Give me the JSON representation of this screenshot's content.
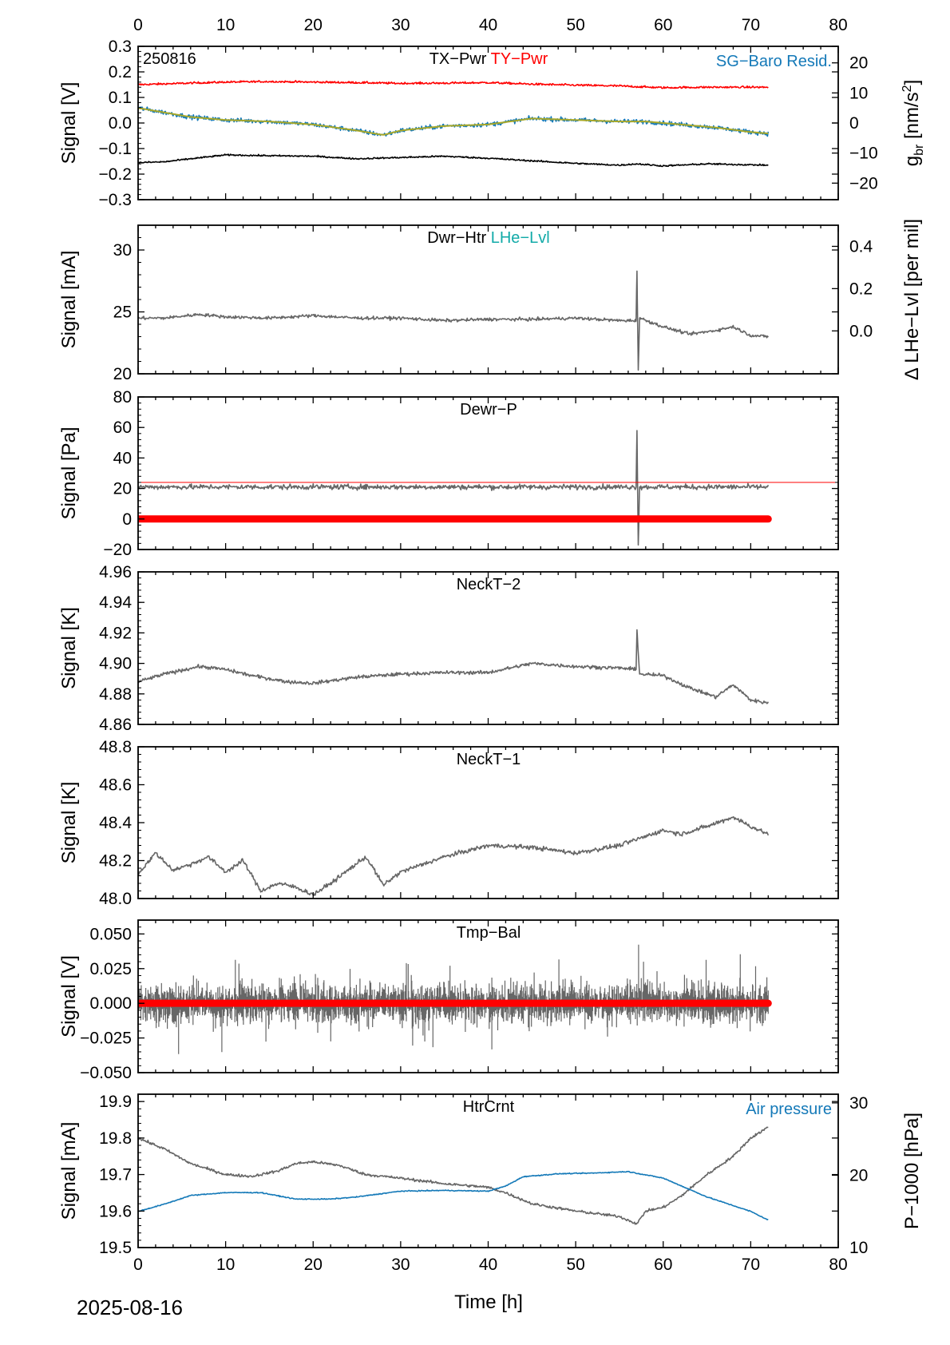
{
  "figure": {
    "date_label": "2025-08-16",
    "x_axis_title": "Time [h]",
    "colors": {
      "black": "#000000",
      "red": "#ff0000",
      "blue": "#1479b8",
      "teal": "#12aaa8",
      "gray": "#666666",
      "olive": "#a8a828"
    }
  },
  "chart_data": [
    {
      "id": "tx-ty-pwr",
      "type": "line",
      "corner_label": "250816",
      "labels": [
        {
          "text": "TX−Pwr",
          "color": "#000000"
        },
        {
          "text": "TY−Pwr",
          "color": "#ff0000"
        }
      ],
      "right_label": {
        "text": "SG−Baro Resid.",
        "color": "#1479b8"
      },
      "xlim": [
        0,
        80
      ],
      "xticks": [
        "0",
        "10",
        "20",
        "30",
        "40",
        "50",
        "60",
        "70",
        "80"
      ],
      "ylabel": "Signal [V]",
      "ylim": [
        -0.3,
        0.3
      ],
      "yticks": [
        "0.3",
        "0.2",
        "0.1",
        "0.0",
        "−0.1",
        "−0.2",
        "−0.3"
      ],
      "y2label": "g_br [nm/s²]",
      "y2_parts": [
        "g",
        "br",
        " [nm/s",
        "2",
        "]"
      ],
      "y2lim": [
        -25.5,
        25.5
      ],
      "y2ticks": [
        "20",
        "10",
        "0",
        "−10",
        "−20"
      ],
      "series": [
        {
          "name": "TY−Pwr",
          "color": "#ff0000",
          "axis": "left",
          "style": "line",
          "noise": 0.004,
          "x": [
            0,
            5,
            10,
            15,
            20,
            25,
            30,
            35,
            40,
            45,
            50,
            55,
            57,
            60,
            65,
            72
          ],
          "y": [
            0.15,
            0.155,
            0.16,
            0.162,
            0.16,
            0.158,
            0.155,
            0.156,
            0.158,
            0.152,
            0.148,
            0.145,
            0.142,
            0.138,
            0.14,
            0.14
          ]
        },
        {
          "name": "SG−Baro Resid.",
          "color": "#1479b8",
          "axis": "right",
          "style": "line",
          "noise": 0.7,
          "x": [
            0,
            3,
            6,
            10,
            15,
            20,
            25,
            28,
            30,
            35,
            40,
            45,
            50,
            55,
            58,
            62,
            66,
            70,
            72
          ],
          "y": [
            5,
            3.5,
            2,
            1,
            0.5,
            -0.5,
            -2.5,
            -4,
            -2.5,
            -1,
            -0.5,
            1.5,
            1,
            0.5,
            0.5,
            -0.5,
            -1.5,
            -3,
            -3.5
          ]
        },
        {
          "name": "TX−Pwr",
          "color": "#000000",
          "axis": "left",
          "style": "line",
          "noise": 0.003,
          "x": [
            0,
            3,
            6,
            10,
            15,
            20,
            25,
            30,
            35,
            40,
            45,
            50,
            55,
            57,
            60,
            65,
            72
          ],
          "y": [
            -0.155,
            -0.152,
            -0.14,
            -0.125,
            -0.128,
            -0.13,
            -0.14,
            -0.135,
            -0.13,
            -0.138,
            -0.148,
            -0.158,
            -0.165,
            -0.16,
            -0.168,
            -0.16,
            -0.165
          ]
        }
      ]
    },
    {
      "id": "dwr-htr",
      "type": "line",
      "labels": [
        {
          "text": "Dwr−Htr",
          "color": "#000000"
        },
        {
          "text": "LHe−Lvl",
          "color": "#12aaa8"
        }
      ],
      "xlim": [
        0,
        80
      ],
      "ylabel": "Signal [mA]",
      "ylim": [
        20,
        32
      ],
      "yticks": [
        "30",
        "25",
        "20"
      ],
      "y2label": "Δ LHe−Lvl [per mil]",
      "y2lim": [
        -0.203,
        0.5
      ],
      "y2ticks": [
        "0.4",
        "0.2",
        "0.0"
      ],
      "series": [
        {
          "name": "Dwr−Htr",
          "color": "#666666",
          "axis": "left",
          "style": "line",
          "noise": 0.12,
          "x": [
            0,
            3,
            7,
            10,
            15,
            20,
            25,
            30,
            35,
            40,
            45,
            50,
            55,
            56.9,
            57,
            57.15,
            57.3,
            60,
            63,
            66,
            68,
            70,
            72
          ],
          "y": [
            24.5,
            24.5,
            24.8,
            24.6,
            24.5,
            24.7,
            24.5,
            24.5,
            24.3,
            24.4,
            24.4,
            24.5,
            24.3,
            24.3,
            28.3,
            20.3,
            24.5,
            23.8,
            23.2,
            23.5,
            23.8,
            23.1,
            23
          ]
        }
      ]
    },
    {
      "id": "dewr-p",
      "type": "line",
      "labels": [
        {
          "text": "Dewr−P",
          "color": "#000000"
        }
      ],
      "xlim": [
        0,
        80
      ],
      "ylabel": "Signal [Pa]",
      "ylim": [
        -20,
        80
      ],
      "yticks": [
        "80",
        "60",
        "40",
        "20",
        "0",
        "−20"
      ],
      "series": [
        {
          "name": "",
          "color": "#666666",
          "axis": "left",
          "style": "line",
          "noise": 1.6,
          "x": [
            0,
            10,
            20,
            30,
            40,
            50,
            56.9,
            57,
            57.15,
            57.3,
            60,
            72
          ],
          "y": [
            21,
            21,
            21,
            21,
            21,
            21,
            21,
            58,
            -17,
            21,
            21,
            21
          ]
        },
        {
          "name": "",
          "color": "#ff0000",
          "axis": "left",
          "style": "thinline",
          "noise": 0,
          "x": [
            0,
            80
          ],
          "y": [
            24,
            24
          ]
        },
        {
          "name": "",
          "color": "#ff0000",
          "axis": "left",
          "style": "thick",
          "noise": 0,
          "x": [
            0,
            72
          ],
          "y": [
            0,
            0
          ]
        }
      ]
    },
    {
      "id": "neckt-2",
      "type": "line",
      "labels": [
        {
          "text": "NeckT−2",
          "color": "#000000"
        }
      ],
      "xlim": [
        0,
        80
      ],
      "ylabel": "Signal [K]",
      "ylim": [
        4.86,
        4.96
      ],
      "yticks": [
        "4.96",
        "4.94",
        "4.92",
        "4.90",
        "4.88",
        "4.86"
      ],
      "series": [
        {
          "name": "NeckT−2",
          "color": "#666666",
          "axis": "left",
          "style": "line",
          "noise": 0.0011,
          "x": [
            0,
            3,
            7,
            10,
            13,
            17,
            20,
            25,
            30,
            35,
            40,
            45,
            50,
            55,
            56.9,
            57,
            57.3,
            60,
            63,
            66,
            68,
            70,
            72
          ],
          "y": [
            4.888,
            4.893,
            4.898,
            4.896,
            4.892,
            4.888,
            4.887,
            4.891,
            4.893,
            4.894,
            4.894,
            4.9,
            4.898,
            4.897,
            4.896,
            4.922,
            4.893,
            4.892,
            4.884,
            4.878,
            4.886,
            4.876,
            4.874
          ]
        }
      ]
    },
    {
      "id": "neckt-1",
      "type": "line",
      "labels": [
        {
          "text": "NeckT−1",
          "color": "#000000"
        }
      ],
      "xlim": [
        0,
        80
      ],
      "ylabel": "Signal [K]",
      "ylim": [
        48.0,
        48.8
      ],
      "yticks": [
        "48.8",
        "48.6",
        "48.4",
        "48.2",
        "48.0"
      ],
      "series": [
        {
          "name": "NeckT−1",
          "color": "#666666",
          "axis": "left",
          "style": "line",
          "noise": 0.011,
          "x": [
            0,
            2,
            4,
            6,
            8,
            10,
            12,
            14,
            16,
            18,
            20,
            22,
            24,
            26,
            27,
            28,
            30,
            35,
            40,
            45,
            50,
            55,
            60,
            62,
            65,
            68,
            70,
            72
          ],
          "y": [
            48.13,
            48.24,
            48.15,
            48.18,
            48.22,
            48.14,
            48.2,
            48.04,
            48.08,
            48.06,
            48.02,
            48.08,
            48.15,
            48.22,
            48.15,
            48.07,
            48.14,
            48.22,
            48.28,
            48.27,
            48.24,
            48.28,
            48.36,
            48.34,
            48.38,
            48.43,
            48.38,
            48.34
          ]
        }
      ]
    },
    {
      "id": "tmp-bal",
      "type": "line",
      "labels": [
        {
          "text": "Tmp−Bal",
          "color": "#000000"
        }
      ],
      "xlim": [
        0,
        80
      ],
      "ylabel": "Signal [V]",
      "ylim": [
        -0.05,
        0.06
      ],
      "yticks": [
        "0.050",
        "0.025",
        "0.000",
        "−0.025",
        "−0.050"
      ],
      "series": [
        {
          "name": "",
          "color": "#666666",
          "axis": "left",
          "style": "noiseband",
          "noise": 0.026,
          "x": [
            0,
            72
          ],
          "y": [
            0,
            0
          ]
        },
        {
          "name": "",
          "color": "#ff0000",
          "axis": "left",
          "style": "thick",
          "noise": 0,
          "x": [
            0,
            72
          ],
          "y": [
            0,
            0
          ]
        }
      ]
    },
    {
      "id": "htrcrnt",
      "type": "line",
      "labels": [
        {
          "text": "HtrCrnt",
          "color": "#000000"
        }
      ],
      "right_label": {
        "text": "Air pressure",
        "color": "#1479b8"
      },
      "xlim": [
        0,
        80
      ],
      "xticks": [
        "0",
        "10",
        "20",
        "30",
        "40",
        "50",
        "60",
        "70",
        "80"
      ],
      "ylabel": "Signal [mA]",
      "ylim": [
        19.5,
        19.92
      ],
      "yticks": [
        "19.9",
        "19.8",
        "19.7",
        "19.6",
        "19.5"
      ],
      "y2label": "P−1000 [hPa]",
      "y2lim": [
        10,
        31.2
      ],
      "y2ticks": [
        "30",
        "20",
        "10"
      ],
      "series": [
        {
          "name": "HtrCrnt",
          "color": "#666666",
          "axis": "left",
          "style": "line",
          "noise": 0.0035,
          "x": [
            0,
            3,
            6,
            10,
            13,
            16,
            18,
            20,
            23,
            26,
            30,
            35,
            40,
            42,
            45,
            50,
            55,
            57,
            58,
            60,
            62,
            65,
            68,
            70,
            72
          ],
          "y": [
            19.8,
            19.77,
            19.73,
            19.7,
            19.695,
            19.71,
            19.73,
            19.735,
            19.725,
            19.7,
            19.69,
            19.675,
            19.665,
            19.65,
            19.62,
            19.6,
            19.585,
            19.565,
            19.6,
            19.61,
            19.64,
            19.7,
            19.75,
            19.8,
            19.83
          ]
        },
        {
          "name": "Air pressure",
          "color": "#1479b8",
          "axis": "right",
          "style": "line",
          "noise": 0.06,
          "x": [
            0,
            3,
            6,
            10,
            14,
            18,
            22,
            25,
            30,
            35,
            40,
            42,
            44,
            48,
            52,
            56,
            60,
            65,
            68,
            70,
            72
          ],
          "y": [
            15,
            16,
            17.2,
            17.6,
            17.6,
            16.7,
            16.7,
            17,
            17.8,
            17.9,
            17.8,
            18.5,
            19.8,
            20.2,
            20.3,
            20.5,
            19.6,
            17,
            15.8,
            15,
            13.8
          ]
        }
      ]
    }
  ]
}
